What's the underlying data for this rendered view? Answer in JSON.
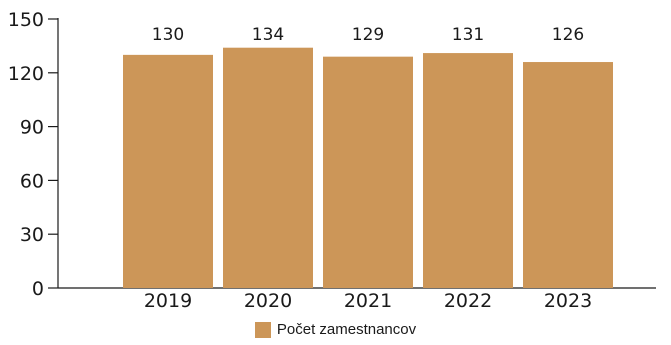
{
  "chart_data": {
    "type": "bar",
    "categories": [
      "2019",
      "2020",
      "2021",
      "2022",
      "2023"
    ],
    "series": [
      {
        "name": "Počet zamestnancov",
        "values": [
          130,
          134,
          129,
          131,
          126
        ],
        "color": "#CC9658"
      }
    ],
    "data_labels": [
      "130",
      "134",
      "129",
      "131",
      "126"
    ],
    "yticks": [
      "0",
      "30",
      "60",
      "90",
      "120",
      "150"
    ],
    "ylim": [
      0,
      150
    ],
    "grid": false,
    "legend": "bottom-center"
  }
}
